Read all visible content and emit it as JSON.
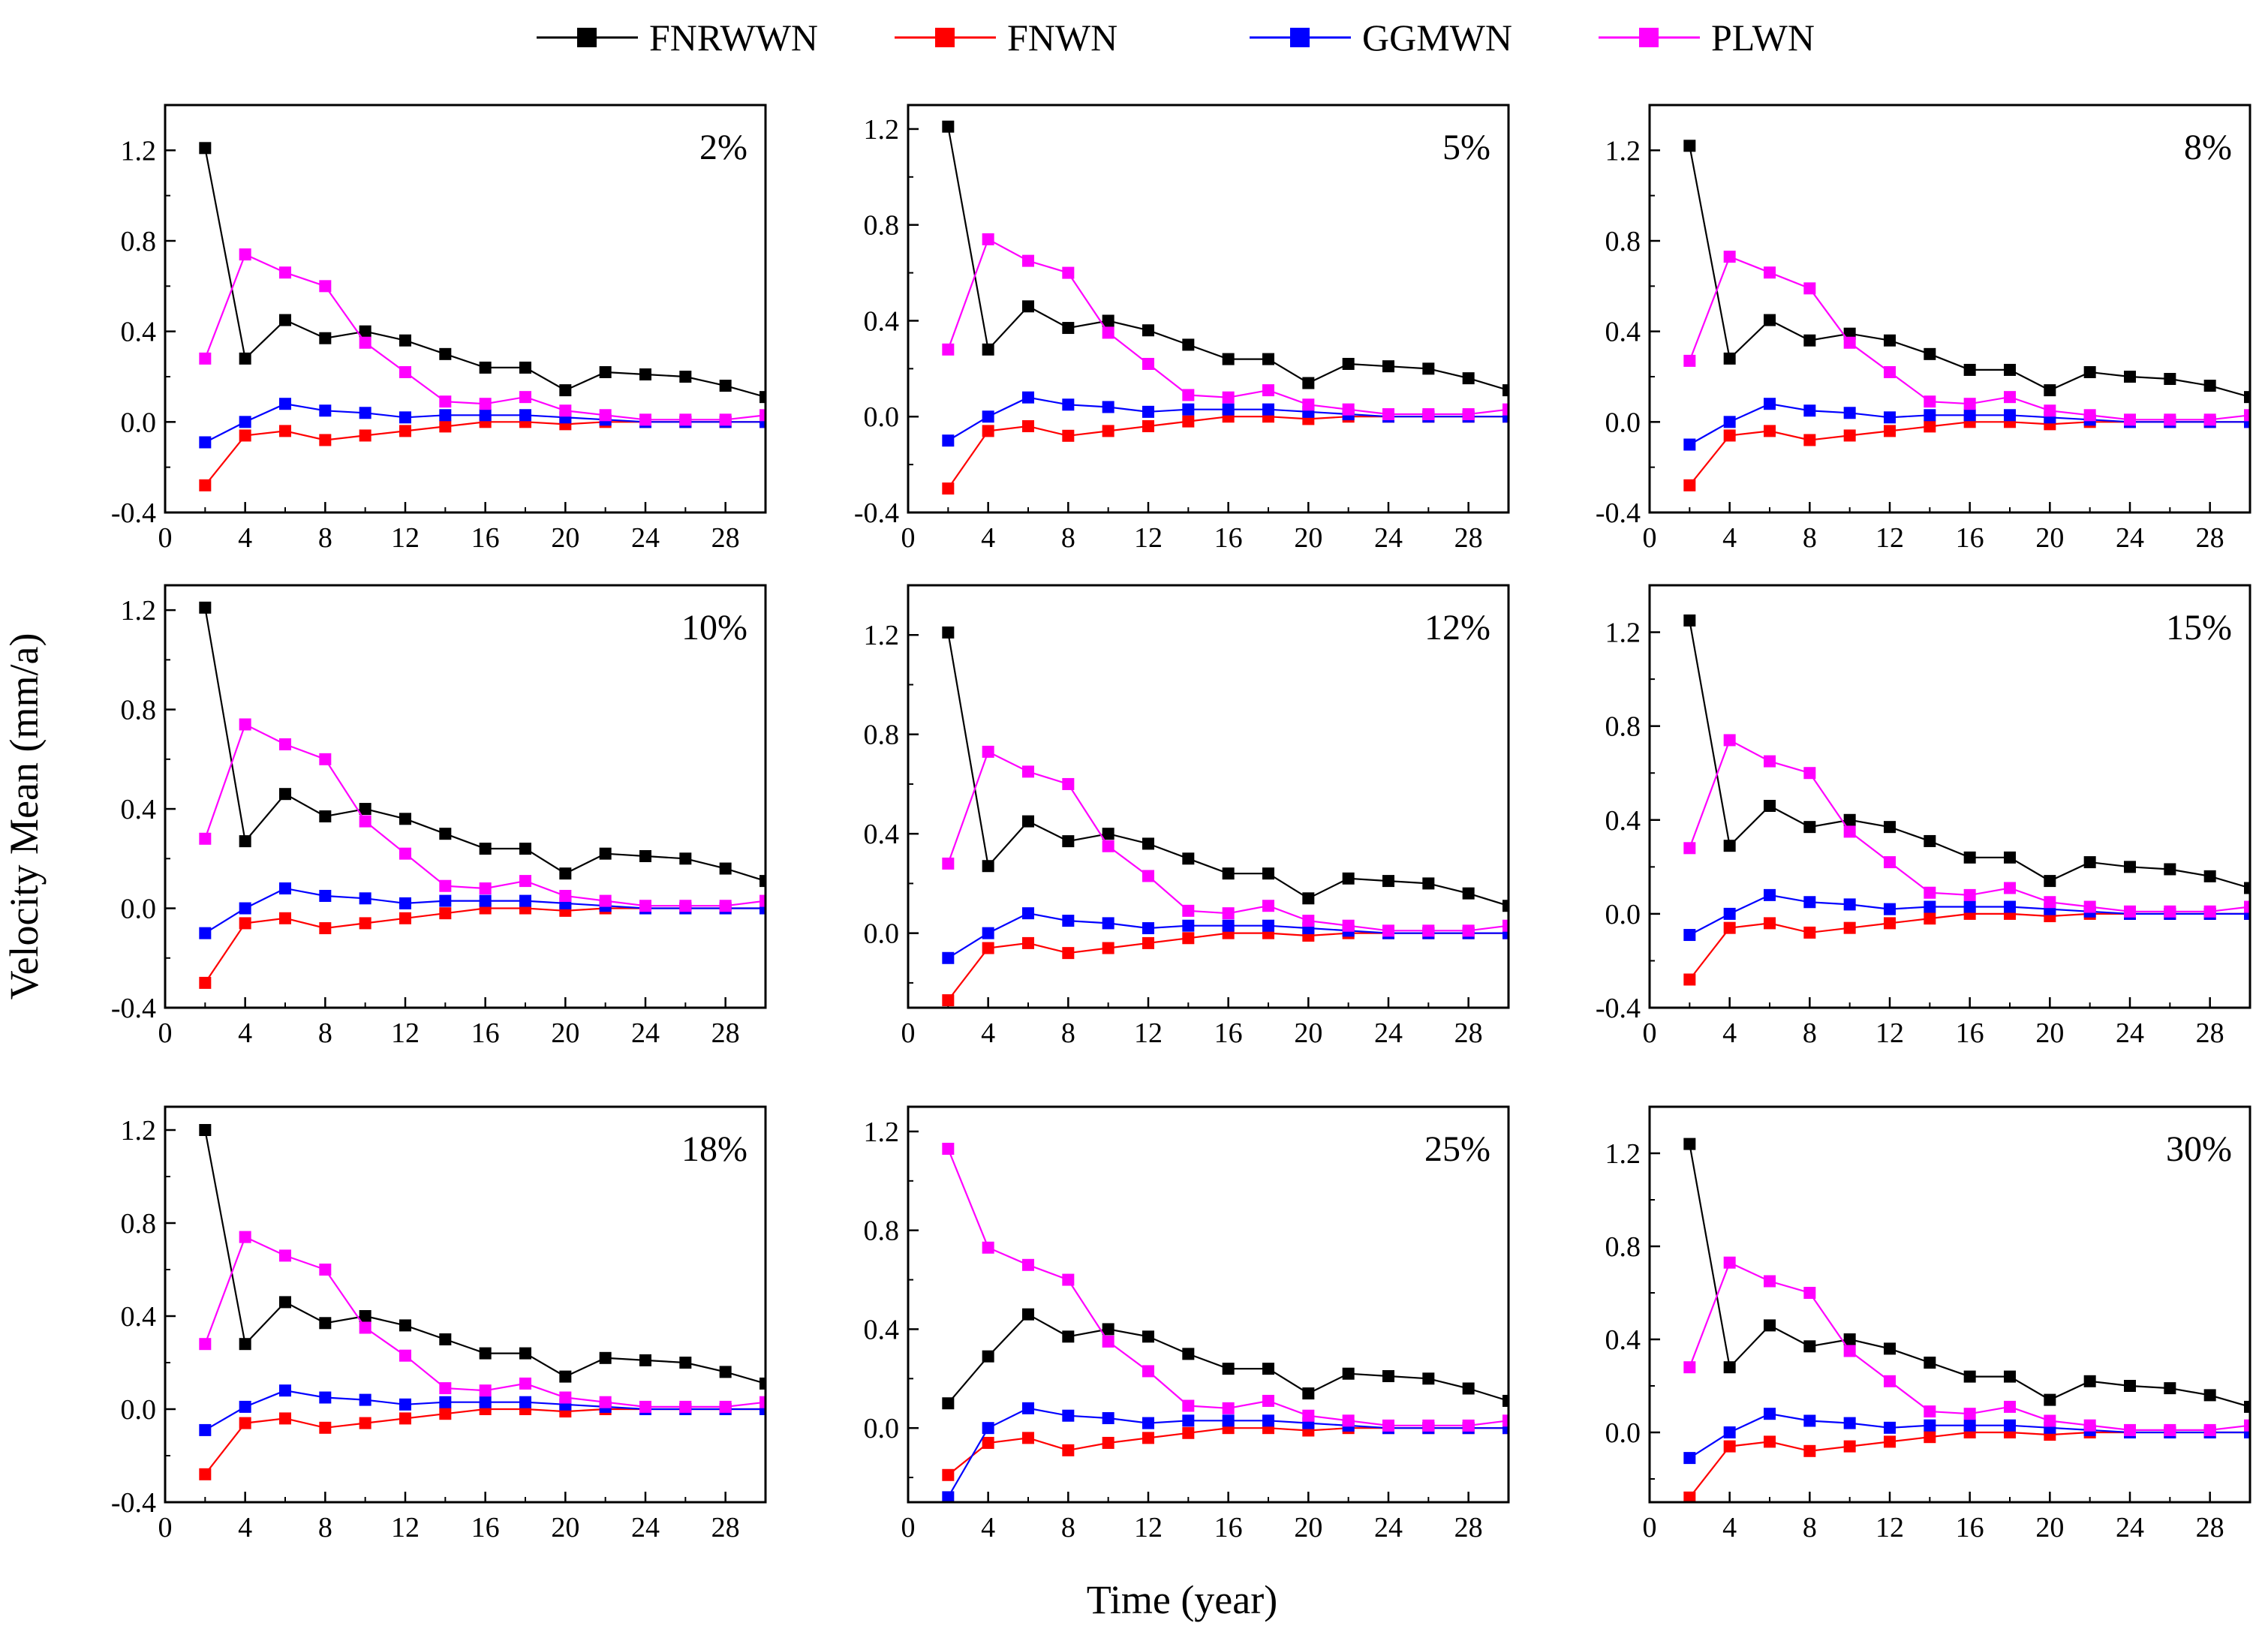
{
  "figure": {
    "ylabel": "Velocity Mean (mm/a)",
    "xlabel": "Time (year)"
  },
  "legend": [
    {
      "name": "FNRWWN",
      "color": "#000000"
    },
    {
      "name": "FNWN",
      "color": "#ff0000"
    },
    {
      "name": "GGMWN",
      "color": "#0000ff"
    },
    {
      "name": "PLWN",
      "color": "#ff00ff"
    }
  ],
  "chart_data": [
    {
      "type": "line",
      "title": "2%",
      "x": [
        2,
        4,
        6,
        8,
        10,
        12,
        14,
        16,
        18,
        20,
        22,
        24,
        26,
        28,
        30
      ],
      "xlim": [
        0,
        30
      ],
      "xticks": [
        0,
        4,
        8,
        12,
        16,
        20,
        24,
        28
      ],
      "ylim": [
        -0.4,
        1.4
      ],
      "yticks": [
        -0.4,
        0.0,
        0.4,
        0.8,
        1.2
      ],
      "ytick_labels": [
        "-0.4",
        "0.0",
        "0.4",
        "0.8",
        "1.2"
      ],
      "series": [
        {
          "name": "FNRWWN",
          "values": [
            1.21,
            0.28,
            0.45,
            0.37,
            0.4,
            0.36,
            0.3,
            0.24,
            0.24,
            0.14,
            0.22,
            0.21,
            0.2,
            0.16,
            0.11
          ]
        },
        {
          "name": "FNWN",
          "values": [
            -0.28,
            -0.06,
            -0.04,
            -0.08,
            -0.06,
            -0.04,
            -0.02,
            0.0,
            0.0,
            -0.01,
            0.0,
            0.0,
            0.0,
            0.0,
            0.0
          ]
        },
        {
          "name": "GGMWN",
          "values": [
            -0.09,
            0.0,
            0.08,
            0.05,
            0.04,
            0.02,
            0.03,
            0.03,
            0.03,
            0.02,
            0.01,
            0.0,
            0.0,
            0.0,
            0.0
          ]
        },
        {
          "name": "PLWN",
          "values": [
            0.28,
            0.74,
            0.66,
            0.6,
            0.35,
            0.22,
            0.09,
            0.08,
            0.11,
            0.05,
            0.03,
            0.01,
            0.01,
            0.01,
            0.03
          ]
        }
      ]
    },
    {
      "type": "line",
      "title": "5%",
      "x": [
        2,
        4,
        6,
        8,
        10,
        12,
        14,
        16,
        18,
        20,
        22,
        24,
        26,
        28,
        30
      ],
      "xlim": [
        0,
        30
      ],
      "xticks": [
        0,
        4,
        8,
        12,
        16,
        20,
        24,
        28
      ],
      "ylim": [
        -0.4,
        1.3
      ],
      "yticks": [
        -0.4,
        0.0,
        0.4,
        0.8,
        1.2
      ],
      "ytick_labels": [
        "-0.4",
        "0.0",
        "0.4",
        "0.8",
        "1.2"
      ],
      "series": [
        {
          "name": "FNRWWN",
          "values": [
            1.21,
            0.28,
            0.46,
            0.37,
            0.4,
            0.36,
            0.3,
            0.24,
            0.24,
            0.14,
            0.22,
            0.21,
            0.2,
            0.16,
            0.11
          ]
        },
        {
          "name": "FNWN",
          "values": [
            -0.3,
            -0.06,
            -0.04,
            -0.08,
            -0.06,
            -0.04,
            -0.02,
            0.0,
            0.0,
            -0.01,
            0.0,
            0.0,
            0.0,
            0.0,
            0.0
          ]
        },
        {
          "name": "GGMWN",
          "values": [
            -0.1,
            0.0,
            0.08,
            0.05,
            0.04,
            0.02,
            0.03,
            0.03,
            0.03,
            0.02,
            0.01,
            0.0,
            0.0,
            0.0,
            0.0
          ]
        },
        {
          "name": "PLWN",
          "values": [
            0.28,
            0.74,
            0.65,
            0.6,
            0.35,
            0.22,
            0.09,
            0.08,
            0.11,
            0.05,
            0.03,
            0.01,
            0.01,
            0.01,
            0.03
          ]
        }
      ]
    },
    {
      "type": "line",
      "title": "8%",
      "x": [
        2,
        4,
        6,
        8,
        10,
        12,
        14,
        16,
        18,
        20,
        22,
        24,
        26,
        28,
        30
      ],
      "xlim": [
        0,
        30
      ],
      "xticks": [
        0,
        4,
        8,
        12,
        16,
        20,
        24,
        28
      ],
      "ylim": [
        -0.4,
        1.4
      ],
      "yticks": [
        -0.4,
        0.0,
        0.4,
        0.8,
        1.2
      ],
      "ytick_labels": [
        "-0.4",
        "0.0",
        "0.4",
        "0.8",
        "1.2"
      ],
      "series": [
        {
          "name": "FNRWWN",
          "values": [
            1.22,
            0.28,
            0.45,
            0.36,
            0.39,
            0.36,
            0.3,
            0.23,
            0.23,
            0.14,
            0.22,
            0.2,
            0.19,
            0.16,
            0.11
          ]
        },
        {
          "name": "FNWN",
          "values": [
            -0.28,
            -0.06,
            -0.04,
            -0.08,
            -0.06,
            -0.04,
            -0.02,
            0.0,
            0.0,
            -0.01,
            0.0,
            0.0,
            0.0,
            0.0,
            0.0
          ]
        },
        {
          "name": "GGMWN",
          "values": [
            -0.1,
            0.0,
            0.08,
            0.05,
            0.04,
            0.02,
            0.03,
            0.03,
            0.03,
            0.02,
            0.01,
            0.0,
            0.0,
            0.0,
            0.0
          ]
        },
        {
          "name": "PLWN",
          "values": [
            0.27,
            0.73,
            0.66,
            0.59,
            0.35,
            0.22,
            0.09,
            0.08,
            0.11,
            0.05,
            0.03,
            0.01,
            0.01,
            0.01,
            0.03
          ]
        }
      ]
    },
    {
      "type": "line",
      "title": "10%",
      "x": [
        2,
        4,
        6,
        8,
        10,
        12,
        14,
        16,
        18,
        20,
        22,
        24,
        26,
        28,
        30
      ],
      "xlim": [
        0,
        30
      ],
      "xticks": [
        0,
        4,
        8,
        12,
        16,
        20,
        24,
        28
      ],
      "ylim": [
        -0.4,
        1.3
      ],
      "yticks": [
        -0.4,
        0.0,
        0.4,
        0.8,
        1.2
      ],
      "ytick_labels": [
        "-0.4",
        "0.0",
        "0.4",
        "0.8",
        "1.2"
      ],
      "series": [
        {
          "name": "FNRWWN",
          "values": [
            1.21,
            0.27,
            0.46,
            0.37,
            0.4,
            0.36,
            0.3,
            0.24,
            0.24,
            0.14,
            0.22,
            0.21,
            0.2,
            0.16,
            0.11
          ]
        },
        {
          "name": "FNWN",
          "values": [
            -0.3,
            -0.06,
            -0.04,
            -0.08,
            -0.06,
            -0.04,
            -0.02,
            0.0,
            0.0,
            -0.01,
            0.0,
            0.0,
            0.0,
            0.0,
            0.0
          ]
        },
        {
          "name": "GGMWN",
          "values": [
            -0.1,
            0.0,
            0.08,
            0.05,
            0.04,
            0.02,
            0.03,
            0.03,
            0.03,
            0.02,
            0.01,
            0.0,
            0.0,
            0.0,
            0.0
          ]
        },
        {
          "name": "PLWN",
          "values": [
            0.28,
            0.74,
            0.66,
            0.6,
            0.35,
            0.22,
            0.09,
            0.08,
            0.11,
            0.05,
            0.03,
            0.01,
            0.01,
            0.01,
            0.03
          ]
        }
      ]
    },
    {
      "type": "line",
      "title": "12%",
      "x": [
        2,
        4,
        6,
        8,
        10,
        12,
        14,
        16,
        18,
        20,
        22,
        24,
        26,
        28,
        30
      ],
      "xlim": [
        0,
        30
      ],
      "xticks": [
        0,
        4,
        8,
        12,
        16,
        20,
        24,
        28
      ],
      "ylim": [
        -0.3,
        1.4
      ],
      "yticks": [
        0.0,
        0.4,
        0.8,
        1.2
      ],
      "ytick_labels": [
        "0.0",
        "0.4",
        "0.8",
        "1.2"
      ],
      "series": [
        {
          "name": "FNRWWN",
          "values": [
            1.21,
            0.27,
            0.45,
            0.37,
            0.4,
            0.36,
            0.3,
            0.24,
            0.24,
            0.14,
            0.22,
            0.21,
            0.2,
            0.16,
            0.11
          ]
        },
        {
          "name": "FNWN",
          "values": [
            -0.27,
            -0.06,
            -0.04,
            -0.08,
            -0.06,
            -0.04,
            -0.02,
            0.0,
            0.0,
            -0.01,
            0.0,
            0.0,
            0.0,
            0.0,
            0.0
          ]
        },
        {
          "name": "GGMWN",
          "values": [
            -0.1,
            0.0,
            0.08,
            0.05,
            0.04,
            0.02,
            0.03,
            0.03,
            0.03,
            0.02,
            0.01,
            0.0,
            0.0,
            0.0,
            0.0
          ]
        },
        {
          "name": "PLWN",
          "values": [
            0.28,
            0.73,
            0.65,
            0.6,
            0.35,
            0.23,
            0.09,
            0.08,
            0.11,
            0.05,
            0.03,
            0.01,
            0.01,
            0.01,
            0.03
          ]
        }
      ]
    },
    {
      "type": "line",
      "title": "15%",
      "x": [
        2,
        4,
        6,
        8,
        10,
        12,
        14,
        16,
        18,
        20,
        22,
        24,
        26,
        28,
        30
      ],
      "xlim": [
        0,
        30
      ],
      "xticks": [
        0,
        4,
        8,
        12,
        16,
        20,
        24,
        28
      ],
      "ylim": [
        -0.4,
        1.4
      ],
      "yticks": [
        -0.4,
        0.0,
        0.4,
        0.8,
        1.2
      ],
      "ytick_labels": [
        "-0.4",
        "0.0",
        "0.4",
        "0.8",
        "1.2"
      ],
      "series": [
        {
          "name": "FNRWWN",
          "values": [
            1.25,
            0.29,
            0.46,
            0.37,
            0.4,
            0.37,
            0.31,
            0.24,
            0.24,
            0.14,
            0.22,
            0.2,
            0.19,
            0.16,
            0.11
          ]
        },
        {
          "name": "FNWN",
          "values": [
            -0.28,
            -0.06,
            -0.04,
            -0.08,
            -0.06,
            -0.04,
            -0.02,
            0.0,
            0.0,
            -0.01,
            0.0,
            0.0,
            0.0,
            0.0,
            0.0
          ]
        },
        {
          "name": "GGMWN",
          "values": [
            -0.09,
            0.0,
            0.08,
            0.05,
            0.04,
            0.02,
            0.03,
            0.03,
            0.03,
            0.02,
            0.01,
            0.0,
            0.0,
            0.0,
            0.0
          ]
        },
        {
          "name": "PLWN",
          "values": [
            0.28,
            0.74,
            0.65,
            0.6,
            0.35,
            0.22,
            0.09,
            0.08,
            0.11,
            0.05,
            0.03,
            0.01,
            0.01,
            0.01,
            0.03
          ]
        }
      ]
    },
    {
      "type": "line",
      "title": "18%",
      "x": [
        2,
        4,
        6,
        8,
        10,
        12,
        14,
        16,
        18,
        20,
        22,
        24,
        26,
        28,
        30
      ],
      "xlim": [
        0,
        30
      ],
      "xticks": [
        0,
        4,
        8,
        12,
        16,
        20,
        24,
        28
      ],
      "ylim": [
        -0.4,
        1.3
      ],
      "yticks": [
        -0.4,
        0.0,
        0.4,
        0.8,
        1.2
      ],
      "ytick_labels": [
        "-0.4",
        "0.0",
        "0.4",
        "0.8",
        "1.2"
      ],
      "series": [
        {
          "name": "FNRWWN",
          "values": [
            1.2,
            0.28,
            0.46,
            0.37,
            0.4,
            0.36,
            0.3,
            0.24,
            0.24,
            0.14,
            0.22,
            0.21,
            0.2,
            0.16,
            0.11
          ]
        },
        {
          "name": "FNWN",
          "values": [
            -0.28,
            -0.06,
            -0.04,
            -0.08,
            -0.06,
            -0.04,
            -0.02,
            0.0,
            0.0,
            -0.01,
            0.0,
            0.0,
            0.0,
            0.0,
            0.0
          ]
        },
        {
          "name": "GGMWN",
          "values": [
            -0.09,
            0.01,
            0.08,
            0.05,
            0.04,
            0.02,
            0.03,
            0.03,
            0.03,
            0.02,
            0.01,
            0.0,
            0.0,
            0.0,
            0.0
          ]
        },
        {
          "name": "PLWN",
          "values": [
            0.28,
            0.74,
            0.66,
            0.6,
            0.35,
            0.23,
            0.09,
            0.08,
            0.11,
            0.05,
            0.03,
            0.01,
            0.01,
            0.01,
            0.03
          ]
        }
      ]
    },
    {
      "type": "line",
      "title": "25%",
      "x": [
        2,
        4,
        6,
        8,
        10,
        12,
        14,
        16,
        18,
        20,
        22,
        24,
        26,
        28,
        30
      ],
      "xlim": [
        0,
        30
      ],
      "xticks": [
        0,
        4,
        8,
        12,
        16,
        20,
        24,
        28
      ],
      "ylim": [
        -0.3,
        1.3
      ],
      "yticks": [
        0.0,
        0.4,
        0.8,
        1.2
      ],
      "ytick_labels": [
        "0.0",
        "0.4",
        "0.8",
        "1.2"
      ],
      "series": [
        {
          "name": "FNRWWN",
          "values": [
            0.1,
            0.29,
            0.46,
            0.37,
            0.4,
            0.37,
            0.3,
            0.24,
            0.24,
            0.14,
            0.22,
            0.21,
            0.2,
            0.16,
            0.11
          ]
        },
        {
          "name": "FNWN",
          "values": [
            -0.19,
            -0.06,
            -0.04,
            -0.09,
            -0.06,
            -0.04,
            -0.02,
            0.0,
            0.0,
            -0.01,
            0.0,
            0.0,
            0.0,
            0.0,
            0.0
          ]
        },
        {
          "name": "GGMWN",
          "values": [
            -0.28,
            0.0,
            0.08,
            0.05,
            0.04,
            0.02,
            0.03,
            0.03,
            0.03,
            0.02,
            0.01,
            0.0,
            0.0,
            0.0,
            0.0
          ]
        },
        {
          "name": "PLWN",
          "values": [
            1.13,
            0.73,
            0.66,
            0.6,
            0.35,
            0.23,
            0.09,
            0.08,
            0.11,
            0.05,
            0.03,
            0.01,
            0.01,
            0.01,
            0.03
          ]
        }
      ]
    },
    {
      "type": "line",
      "title": "30%",
      "x": [
        2,
        4,
        6,
        8,
        10,
        12,
        14,
        16,
        18,
        20,
        22,
        24,
        26,
        28,
        30
      ],
      "xlim": [
        0,
        30
      ],
      "xticks": [
        0,
        4,
        8,
        12,
        16,
        20,
        24,
        28
      ],
      "ylim": [
        -0.3,
        1.4
      ],
      "yticks": [
        0.0,
        0.4,
        0.8,
        1.2
      ],
      "ytick_labels": [
        "0.0",
        "0.4",
        "0.8",
        "1.2"
      ],
      "series": [
        {
          "name": "FNRWWN",
          "values": [
            1.24,
            0.28,
            0.46,
            0.37,
            0.4,
            0.36,
            0.3,
            0.24,
            0.24,
            0.14,
            0.22,
            0.2,
            0.19,
            0.16,
            0.11
          ]
        },
        {
          "name": "FNWN",
          "values": [
            -0.28,
            -0.06,
            -0.04,
            -0.08,
            -0.06,
            -0.04,
            -0.02,
            0.0,
            0.0,
            -0.01,
            0.0,
            0.0,
            0.0,
            0.0,
            0.0
          ]
        },
        {
          "name": "GGMWN",
          "values": [
            -0.11,
            0.0,
            0.08,
            0.05,
            0.04,
            0.02,
            0.03,
            0.03,
            0.03,
            0.02,
            0.01,
            0.0,
            0.0,
            0.0,
            0.0
          ]
        },
        {
          "name": "PLWN",
          "values": [
            0.28,
            0.73,
            0.65,
            0.6,
            0.35,
            0.22,
            0.09,
            0.08,
            0.11,
            0.05,
            0.03,
            0.01,
            0.01,
            0.01,
            0.03
          ]
        }
      ]
    }
  ]
}
